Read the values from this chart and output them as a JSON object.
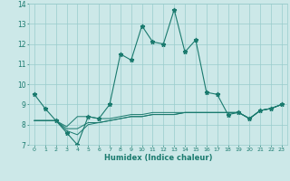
{
  "xlabel": "Humidex (Indice chaleur)",
  "x": [
    0,
    1,
    2,
    3,
    4,
    5,
    6,
    7,
    8,
    9,
    10,
    11,
    12,
    13,
    14,
    15,
    16,
    17,
    18,
    19,
    20,
    21,
    22,
    23
  ],
  "line1": [
    9.5,
    8.8,
    8.2,
    7.6,
    7.0,
    8.4,
    8.3,
    9.0,
    11.5,
    11.2,
    12.9,
    12.1,
    12.0,
    13.7,
    11.6,
    12.2,
    9.6,
    9.5,
    8.5,
    8.6,
    8.3,
    8.7,
    8.8,
    9.0
  ],
  "line2": [
    8.2,
    8.2,
    8.2,
    7.8,
    7.8,
    8.1,
    8.1,
    8.2,
    8.3,
    8.4,
    8.4,
    8.5,
    8.5,
    8.5,
    8.6,
    8.6,
    8.6,
    8.6,
    8.6,
    8.6,
    8.3,
    8.7,
    8.8,
    9.0
  ],
  "line3": [
    8.2,
    8.2,
    8.2,
    7.9,
    8.4,
    8.4,
    8.3,
    8.3,
    8.4,
    8.5,
    8.5,
    8.6,
    8.6,
    8.6,
    8.6,
    8.6,
    8.6,
    8.6,
    8.6,
    8.6,
    8.3,
    8.7,
    8.8,
    9.0
  ],
  "line4": [
    8.2,
    8.2,
    8.2,
    7.7,
    7.5,
    8.0,
    8.1,
    8.2,
    8.3,
    8.4,
    8.4,
    8.5,
    8.5,
    8.5,
    8.6,
    8.6,
    8.6,
    8.6,
    8.6,
    8.6,
    8.3,
    8.7,
    8.8,
    9.0
  ],
  "color": "#1a7a6e",
  "bg_color": "#cce8e8",
  "grid_color": "#99cccc",
  "xlim": [
    -0.5,
    23.5
  ],
  "ylim": [
    7,
    14
  ],
  "yticks": [
    7,
    8,
    9,
    10,
    11,
    12,
    13,
    14
  ]
}
